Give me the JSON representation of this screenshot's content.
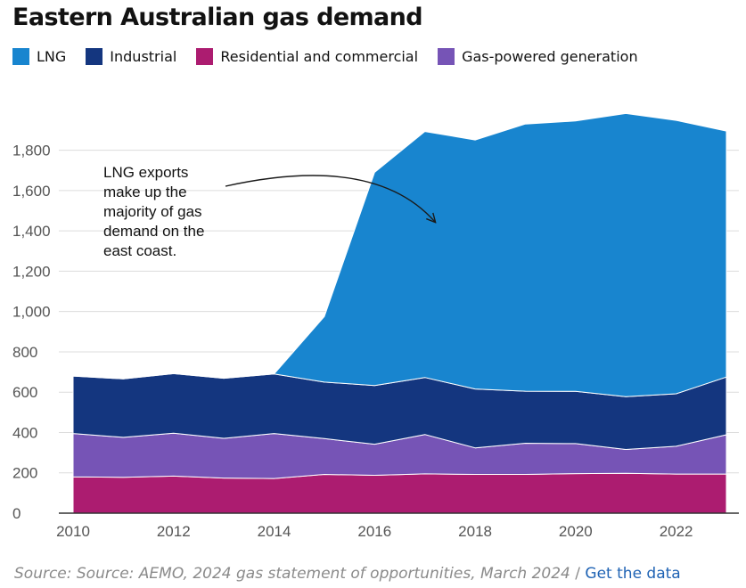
{
  "title": "Eastern Australian gas demand",
  "legend": [
    {
      "label": "LNG",
      "color": "#1885cf"
    },
    {
      "label": "Industrial",
      "color": "#14367f"
    },
    {
      "label": "Residential and commercial",
      "color": "#ac1c70"
    },
    {
      "label": "Gas-powered generation",
      "color": "#7654b6"
    }
  ],
  "annotation": {
    "lines": [
      "LNG exports",
      "make up the",
      "majority of gas",
      "demand on the",
      "east coast."
    ]
  },
  "source": {
    "text": "Source: Source: AEMO, 2024 gas statement of opportunities, March 2024",
    "separator": " / ",
    "link": "Get the data"
  },
  "chart_data": {
    "type": "area",
    "stacked": true,
    "x": [
      2010,
      2011,
      2012,
      2013,
      2014,
      2015,
      2016,
      2017,
      2018,
      2019,
      2020,
      2021,
      2022,
      2023
    ],
    "series": [
      {
        "name": "Residential and commercial",
        "color": "#ac1c70",
        "values": [
          180,
          178,
          184,
          174,
          172,
          192,
          188,
          195,
          192,
          192,
          196,
          198,
          194,
          194
        ]
      },
      {
        "name": "Gas-powered generation",
        "color": "#7654b6",
        "values": [
          215,
          198,
          213,
          197,
          223,
          178,
          154,
          195,
          132,
          155,
          149,
          118,
          138,
          195
        ]
      },
      {
        "name": "Industrial",
        "color": "#14367f",
        "values": [
          285,
          290,
          295,
          298,
          295,
          280,
          291,
          283,
          292,
          258,
          259,
          262,
          260,
          286
        ]
      },
      {
        "name": "LNG",
        "color": "#1885cf",
        "values": [
          0,
          0,
          0,
          0,
          0,
          325,
          1057,
          1220,
          1235,
          1325,
          1341,
          1404,
          1356,
          1220
        ]
      }
    ],
    "xlim": [
      2010,
      2023
    ],
    "ylim": [
      0,
      1900
    ],
    "xticks": [
      2010,
      2012,
      2014,
      2016,
      2018,
      2020,
      2022
    ],
    "yticks": [
      0,
      200,
      400,
      600,
      800,
      1000,
      1200,
      1400,
      1600,
      1800
    ],
    "ytick_labels": [
      "0",
      "200",
      "400",
      "600",
      "800",
      "1,000",
      "1,200",
      "1,400",
      "1,600",
      "1,800"
    ],
    "grid": true,
    "legend_position": "top-left"
  }
}
